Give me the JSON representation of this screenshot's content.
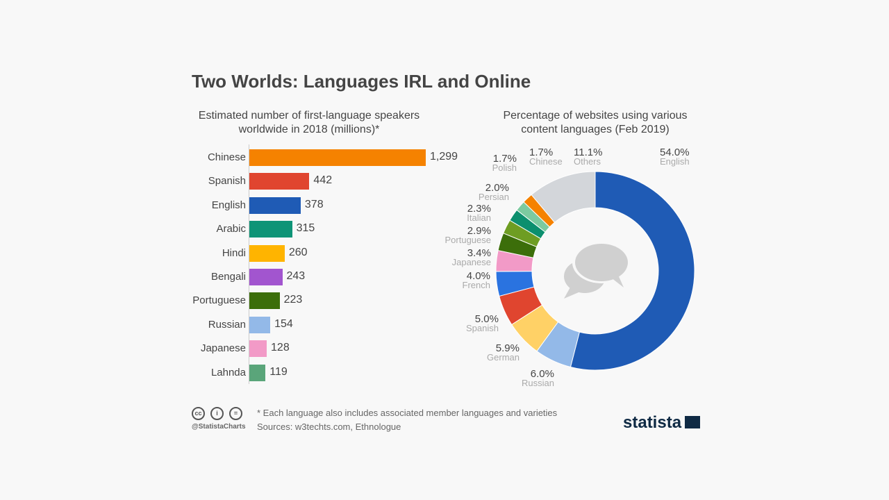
{
  "title": "Two Worlds: Languages IRL and Online",
  "chart_data": [
    {
      "type": "bar",
      "orientation": "horizontal",
      "title": "Estimated number of first-language speakers worldwide in 2018 (millions)*",
      "categories": [
        "Chinese",
        "Spanish",
        "English",
        "Arabic",
        "Hindi",
        "Bengali",
        "Portuguese",
        "Russian",
        "Japanese",
        "Lahnda"
      ],
      "values": [
        1299,
        442,
        378,
        315,
        260,
        243,
        223,
        154,
        128,
        119
      ],
      "value_labels": [
        "1,299",
        "442",
        "378",
        "315",
        "260",
        "243",
        "223",
        "154",
        "128",
        "119"
      ],
      "colors": [
        "#f58200",
        "#e0452f",
        "#1f5bb5",
        "#0e9477",
        "#ffb400",
        "#a255cf",
        "#3c6e0a",
        "#93b9e8",
        "#f29ac7",
        "#5aa57a"
      ]
    },
    {
      "type": "pie",
      "donut": true,
      "title": "Percentage of websites using various content languages (Feb 2019)",
      "slices": [
        {
          "label": "English",
          "value": 54.0,
          "text": "54.0%",
          "color": "#1f5bb5"
        },
        {
          "label": "Russian",
          "value": 6.0,
          "text": "6.0%",
          "color": "#93b9e8"
        },
        {
          "label": "German",
          "value": 5.9,
          "text": "5.9%",
          "color": "#ffd166"
        },
        {
          "label": "Spanish",
          "value": 5.0,
          "text": "5.0%",
          "color": "#e0452f"
        },
        {
          "label": "French",
          "value": 4.0,
          "text": "4.0%",
          "color": "#2a73e0"
        },
        {
          "label": "Japanese",
          "value": 3.4,
          "text": "3.4%",
          "color": "#f29ac7"
        },
        {
          "label": "Portuguese",
          "value": 2.9,
          "text": "2.9%",
          "color": "#3c6e0a"
        },
        {
          "label": "Italian",
          "value": 2.3,
          "text": "2.3%",
          "color": "#6e9d22"
        },
        {
          "label": "Persian",
          "value": 2.0,
          "text": "2.0%",
          "color": "#0c8f6e"
        },
        {
          "label": "Polish",
          "value": 1.7,
          "text": "1.7%",
          "color": "#7ccaa0"
        },
        {
          "label": "Chinese",
          "value": 1.7,
          "text": "1.7%",
          "color": "#f58200"
        },
        {
          "label": "Others",
          "value": 11.1,
          "text": "11.1%",
          "color": "#d3d6da"
        }
      ]
    }
  ],
  "footer": {
    "note": "* Each language also includes associated member languages and varieties",
    "sources": "Sources: w3techts.com, Ethnologue",
    "handle": "@StatistaCharts",
    "cc": [
      "cc",
      "i",
      "="
    ],
    "logo": "statista"
  }
}
